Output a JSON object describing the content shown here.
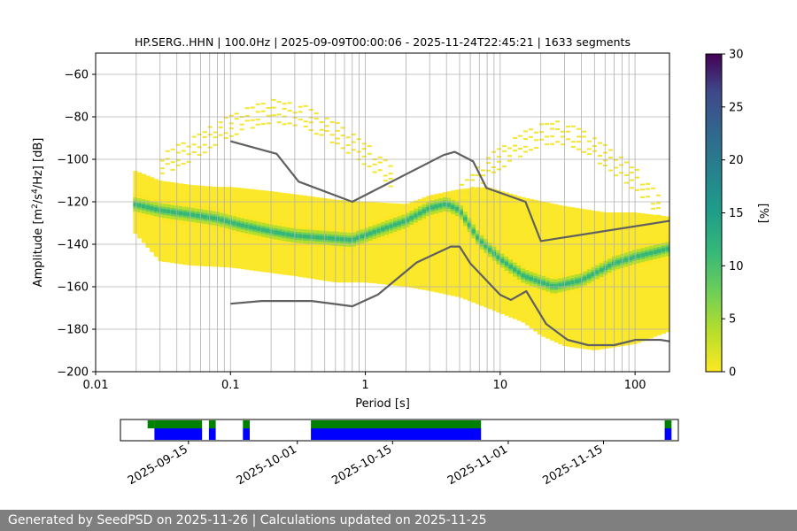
{
  "footer": {
    "text": "Generated by SeedPSD on 2025-11-26 | Calculations updated on 2025-11-25"
  },
  "chart_data": [
    {
      "type": "heatmap",
      "name": "ppsd",
      "title": "HP.SERG..HHN | 100.0Hz | 2025-09-09T00:00:06 - 2025-11-24T22:45:21 | 1633 segments",
      "xlabel": "Period [s]",
      "ylabel_prefix": "Amplitude [m",
      "ylabel_mid": "/s",
      "ylabel_suffix": "/Hz] [dB]",
      "ylabel_sup1": "2",
      "ylabel_sup2": "4",
      "x_scale": "log",
      "xlim": [
        0.01,
        180
      ],
      "ylim": [
        -200,
        -50
      ],
      "x_ticks": [
        0.01,
        0.1,
        1,
        10,
        100
      ],
      "x_tick_labels": [
        "0.01",
        "0.1",
        "1",
        "10",
        "100"
      ],
      "y_ticks": [
        -200,
        -180,
        -160,
        -140,
        -120,
        -100,
        -80,
        -60
      ],
      "y_tick_labels": [
        "−200",
        "−180",
        "−160",
        "−140",
        "−120",
        "−100",
        "−80",
        "−60"
      ],
      "grid": true,
      "colormap": "viridis_r",
      "colorbar": {
        "label": "[%]",
        "range": [
          0,
          30
        ],
        "ticks": [
          0,
          5,
          10,
          15,
          20,
          25,
          30
        ],
        "tick_labels": [
          "0",
          "5",
          "10",
          "15",
          "20",
          "25",
          "30"
        ]
      },
      "mode_curve": {
        "period": [
          0.019,
          0.03,
          0.05,
          0.08,
          0.12,
          0.2,
          0.3,
          0.5,
          0.8,
          1.2,
          2,
          3,
          4,
          5,
          7,
          10,
          15,
          25,
          40,
          70,
          100,
          180
        ],
        "db": [
          -121,
          -124,
          -126,
          -128,
          -131,
          -134,
          -136,
          -137,
          -138,
          -134,
          -129,
          -123,
          -121,
          -124,
          -138,
          -147,
          -155,
          -160,
          -157,
          -149,
          -146,
          -142
        ]
      },
      "upper_envelope": {
        "period": [
          0.019,
          0.03,
          0.05,
          0.08,
          0.1,
          0.2,
          0.35,
          0.6,
          1,
          2,
          3,
          5,
          8,
          15,
          30,
          60,
          100,
          180
        ],
        "db": [
          -105,
          -110,
          -112,
          -113,
          -113,
          -115,
          -117,
          -119,
          -120,
          -121,
          -117,
          -114,
          -113,
          -118,
          -122,
          -125,
          -125,
          -127
        ]
      },
      "lower_envelope": {
        "period": [
          0.019,
          0.03,
          0.05,
          0.1,
          0.3,
          0.6,
          1,
          2,
          3,
          5,
          8,
          15,
          20,
          30,
          50,
          100,
          180
        ],
        "db": [
          -134,
          -148,
          -150,
          -151,
          -155,
          -158,
          -158,
          -160,
          -162,
          -165,
          -170,
          -177,
          -183,
          -188,
          -190,
          -187,
          -181
        ]
      },
      "sparse_arcs": [
        {
          "name": "arc-left",
          "period": [
            0.03,
            0.05,
            0.08,
            0.12,
            0.2,
            0.35,
            0.6,
            1,
            1.5
          ],
          "db": [
            -97,
            -90,
            -82,
            -76,
            -72,
            -75,
            -83,
            -93,
            -103
          ]
        },
        {
          "name": "arc-right",
          "period": [
            5,
            8,
            12,
            18,
            25,
            40,
            60,
            100,
            150
          ],
          "db": [
            -112,
            -98,
            -90,
            -84,
            -82,
            -86,
            -94,
            -105,
            -118
          ]
        }
      ],
      "nlnm": {
        "name": "new-low-noise-model",
        "period": [
          0.1,
          0.17,
          0.4,
          0.8,
          1.24,
          2.4,
          4.3,
          5,
          6,
          10,
          12,
          15.6,
          21.9,
          31.6,
          45,
          70,
          101,
          154,
          180
        ],
        "db": [
          -168,
          -166.7,
          -166.7,
          -169.2,
          -163.7,
          -148.6,
          -141.1,
          -141.1,
          -149,
          -163.8,
          -166.2,
          -162.1,
          -177.5,
          -185,
          -187.5,
          -187.5,
          -185,
          -185,
          -185.7
        ]
      },
      "nhnm": {
        "name": "new-high-noise-model",
        "period": [
          0.1,
          0.22,
          0.32,
          0.8,
          3.8,
          4.6,
          6.3,
          7.9,
          15.4,
          20,
          180
        ],
        "db": [
          -91.5,
          -97.4,
          -110.5,
          -120,
          -98,
          -96.5,
          -101,
          -113.5,
          -120,
          -138.5,
          -129
        ]
      }
    },
    {
      "type": "table",
      "name": "data-availability",
      "x_scale": "time",
      "xlim": [
        "2025-09-05",
        "2025-11-26"
      ],
      "x_ticks": [
        "2025-09-15",
        "2025-10-01",
        "2025-10-15",
        "2025-11-01",
        "2025-11-15"
      ],
      "x_tick_labels": [
        "2025-09-15",
        "2025-10-01",
        "2025-10-15",
        "2025-11-01",
        "2025-11-15"
      ],
      "rows": [
        {
          "name": "psd-coverage",
          "color": "#008000",
          "spans": [
            [
              "2025-09-09",
              "2025-09-10"
            ],
            [
              "2025-09-10",
              "2025-09-17"
            ],
            [
              "2025-09-18",
              "2025-09-19"
            ],
            [
              "2025-09-23",
              "2025-09-24"
            ],
            [
              "2025-10-03",
              "2025-10-28"
            ],
            [
              "2025-11-24",
              "2025-11-25"
            ]
          ]
        },
        {
          "name": "data-coverage",
          "color": "#0000ff",
          "spans": [
            [
              "2025-09-10",
              "2025-09-17"
            ],
            [
              "2025-09-18",
              "2025-09-19"
            ],
            [
              "2025-09-23",
              "2025-09-24"
            ],
            [
              "2025-10-03",
              "2025-10-28"
            ],
            [
              "2025-11-24",
              "2025-11-25"
            ]
          ]
        }
      ]
    }
  ]
}
